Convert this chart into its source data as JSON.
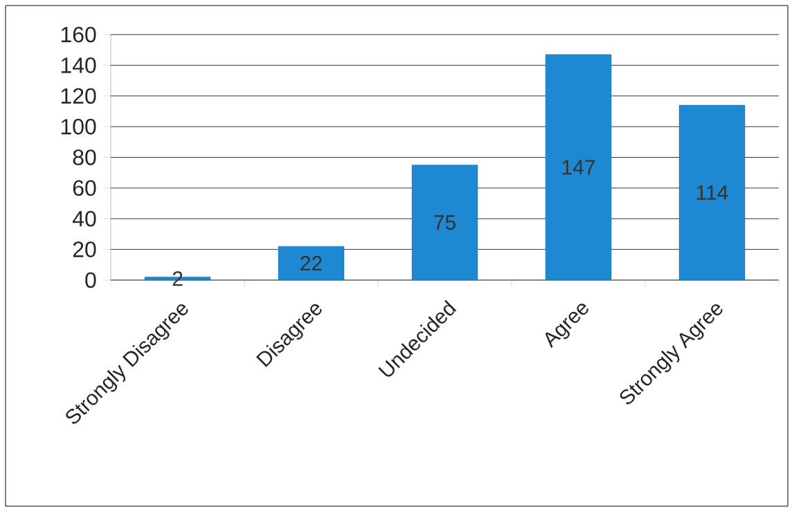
{
  "chart_data": {
    "type": "bar",
    "categories": [
      "Strongly Disagree",
      "Disagree",
      "Undecided",
      "Agree",
      "Strongly Agree"
    ],
    "values": [
      2,
      22,
      75,
      147,
      114
    ],
    "color": "#1e88d2",
    "ylim": [
      0,
      160
    ],
    "yticks": [
      0,
      20,
      40,
      60,
      80,
      100,
      120,
      140,
      160
    ],
    "grid": "y",
    "data_labels": true
  }
}
